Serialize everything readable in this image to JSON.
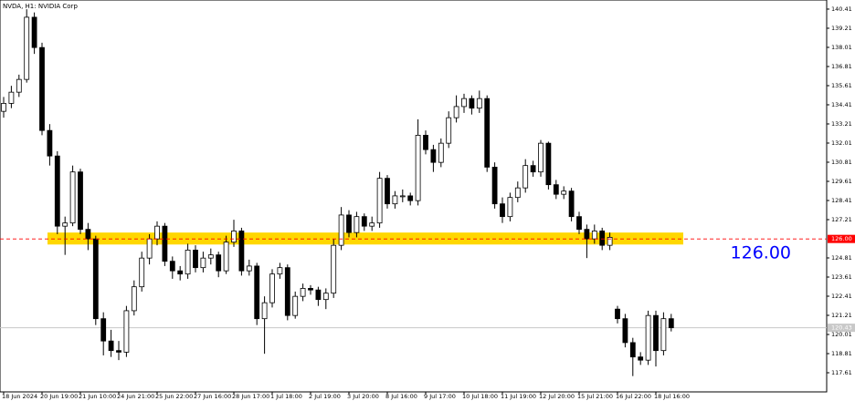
{
  "chart_data": {
    "type": "candlestick",
    "title": "NVDA, H1:  NVIDIA Corp",
    "categories": [
      "18 Jun 2024",
      null,
      null,
      null,
      null,
      "20 Jun 19:00",
      null,
      null,
      null,
      null,
      "21 Jun 10:00",
      null,
      null,
      null,
      null,
      "24 Jun 21:00",
      null,
      null,
      null,
      null,
      "25 Jun 22:00",
      null,
      null,
      null,
      null,
      "27 Jun 16:00",
      null,
      null,
      null,
      null,
      "28 Jun 17:00",
      null,
      null,
      null,
      null,
      "1 Jul 18:00",
      null,
      null,
      null,
      null,
      "2 Jul 19:00",
      null,
      null,
      null,
      null,
      "3 Jul 20:00",
      null,
      null,
      null,
      null,
      "8 Jul 16:00",
      null,
      null,
      null,
      null,
      "9 Jul 17:00",
      null,
      null,
      null,
      null,
      "10 Jul 18:00",
      null,
      null,
      null,
      null,
      "11 Jul 19:00",
      null,
      null,
      null,
      null,
      "12 Jul 20:00",
      null,
      null,
      null,
      null,
      "15 Jul 21:00",
      null,
      null,
      null,
      null,
      "16 Jul 22:00",
      null,
      null,
      null,
      null,
      "18 Jul 16:00",
      null,
      null
    ],
    "candles": [
      [
        134.0,
        134.9,
        133.6,
        134.5
      ],
      [
        134.5,
        135.6,
        134.2,
        135.2
      ],
      [
        135.2,
        136.3,
        134.9,
        136.0
      ],
      [
        136.0,
        140.4,
        135.8,
        139.9
      ],
      [
        139.9,
        140.2,
        137.6,
        138.0
      ],
      [
        138.0,
        138.3,
        132.5,
        132.8
      ],
      [
        132.8,
        133.2,
        130.6,
        131.2
      ],
      [
        131.2,
        131.5,
        126.3,
        126.8
      ],
      [
        126.8,
        127.4,
        125.0,
        127.0
      ],
      [
        127.0,
        130.6,
        126.8,
        130.2
      ],
      [
        130.2,
        130.4,
        126.3,
        126.6
      ],
      [
        126.6,
        127.0,
        125.3,
        126.0
      ],
      [
        126.0,
        126.2,
        120.6,
        121.0
      ],
      [
        121.0,
        121.4,
        118.7,
        119.6
      ],
      [
        119.6,
        120.3,
        118.6,
        119.0
      ],
      [
        119.0,
        119.6,
        118.4,
        118.9
      ],
      [
        118.9,
        121.8,
        118.6,
        121.5
      ],
      [
        121.5,
        123.4,
        121.2,
        123.0
      ],
      [
        123.0,
        125.2,
        122.7,
        124.8
      ],
      [
        124.8,
        126.3,
        124.4,
        126.0
      ],
      [
        126.0,
        127.1,
        125.6,
        126.8
      ],
      [
        126.8,
        127.0,
        124.3,
        124.6
      ],
      [
        124.6,
        124.9,
        123.5,
        124.0
      ],
      [
        124.0,
        124.3,
        123.4,
        123.8
      ],
      [
        123.8,
        125.7,
        123.5,
        125.3
      ],
      [
        125.3,
        125.6,
        123.9,
        124.2
      ],
      [
        124.2,
        125.2,
        123.9,
        124.8
      ],
      [
        124.8,
        125.4,
        124.4,
        125.0
      ],
      [
        125.0,
        125.2,
        123.6,
        124.0
      ],
      [
        124.0,
        126.2,
        123.8,
        125.8
      ],
      [
        125.8,
        127.2,
        125.5,
        126.5
      ],
      [
        126.5,
        126.7,
        123.7,
        124.0
      ],
      [
        124.0,
        124.7,
        123.7,
        124.3
      ],
      [
        124.3,
        124.5,
        120.6,
        121.0
      ],
      [
        121.0,
        122.4,
        118.8,
        122.0
      ],
      [
        122.0,
        124.1,
        121.7,
        123.8
      ],
      [
        123.8,
        124.5,
        123.5,
        124.2
      ],
      [
        124.2,
        124.4,
        120.9,
        121.2
      ],
      [
        121.2,
        122.7,
        121.0,
        122.4
      ],
      [
        122.4,
        123.2,
        122.1,
        122.9
      ],
      [
        122.9,
        123.1,
        122.5,
        122.8
      ],
      [
        122.8,
        123.0,
        121.8,
        122.2
      ],
      [
        122.2,
        122.9,
        121.6,
        122.6
      ],
      [
        122.6,
        126.0,
        122.3,
        125.6
      ],
      [
        125.6,
        128.0,
        125.3,
        127.5
      ],
      [
        127.5,
        127.8,
        126.1,
        126.4
      ],
      [
        126.4,
        127.7,
        126.1,
        127.4
      ],
      [
        127.4,
        127.6,
        126.5,
        126.8
      ],
      [
        126.8,
        127.4,
        126.5,
        127.0
      ],
      [
        127.0,
        130.2,
        126.7,
        129.8
      ],
      [
        129.8,
        130.0,
        127.9,
        128.2
      ],
      [
        128.2,
        129.0,
        127.9,
        128.7
      ],
      [
        128.7,
        129.1,
        128.3,
        128.7
      ],
      [
        128.7,
        128.9,
        128.1,
        128.4
      ],
      [
        128.4,
        133.5,
        128.1,
        132.5
      ],
      [
        132.5,
        132.8,
        131.3,
        131.6
      ],
      [
        131.6,
        131.9,
        130.2,
        130.8
      ],
      [
        130.8,
        132.3,
        130.5,
        132.0
      ],
      [
        132.0,
        134.0,
        131.7,
        133.6
      ],
      [
        133.6,
        135.0,
        133.3,
        134.3
      ],
      [
        134.3,
        135.1,
        133.9,
        134.8
      ],
      [
        134.8,
        135.0,
        133.8,
        134.2
      ],
      [
        134.2,
        135.3,
        133.9,
        134.8
      ],
      [
        134.8,
        135.0,
        130.2,
        130.5
      ],
      [
        130.5,
        130.8,
        127.9,
        128.2
      ],
      [
        128.2,
        128.6,
        127.0,
        127.4
      ],
      [
        127.4,
        128.9,
        127.1,
        128.6
      ],
      [
        128.6,
        129.6,
        128.3,
        129.2
      ],
      [
        129.2,
        131.0,
        128.9,
        130.6
      ],
      [
        130.6,
        130.9,
        129.9,
        130.2
      ],
      [
        130.2,
        132.2,
        129.9,
        132.0
      ],
      [
        132.0,
        132.1,
        129.1,
        129.4
      ],
      [
        129.4,
        129.7,
        128.5,
        128.8
      ],
      [
        128.8,
        129.3,
        128.5,
        129.0
      ],
      [
        129.0,
        129.2,
        127.1,
        127.4
      ],
      [
        127.4,
        127.7,
        126.3,
        126.6
      ],
      [
        126.6,
        126.9,
        124.8,
        126.0
      ],
      [
        126.0,
        126.9,
        125.7,
        126.5
      ],
      [
        126.5,
        126.7,
        125.3,
        125.6
      ],
      [
        125.6,
        126.4,
        125.3,
        126.1
      ],
      [
        121.6,
        121.8,
        120.7,
        121.0
      ],
      [
        121.0,
        121.3,
        119.2,
        119.5
      ],
      [
        119.5,
        119.8,
        117.4,
        118.6
      ],
      [
        118.6,
        118.9,
        118.1,
        118.4
      ],
      [
        118.4,
        121.5,
        118.1,
        121.2
      ],
      [
        121.2,
        121.5,
        118.0,
        119.0
      ],
      [
        119.0,
        121.4,
        118.7,
        121.0
      ],
      [
        121.0,
        121.3,
        120.2,
        120.43
      ]
    ],
    "up_color": "#ffffff",
    "down_color": "#000000",
    "ylim": [
      116.41,
      140.98
    ],
    "yticks": [
      140.41,
      139.21,
      138.01,
      136.81,
      135.61,
      134.41,
      133.21,
      132.01,
      130.81,
      129.61,
      128.41,
      127.21,
      124.81,
      123.61,
      122.41,
      121.21,
      120.01,
      118.81,
      117.61
    ],
    "zone": {
      "low": 125.65,
      "high": 126.4,
      "color": "#ffd700"
    },
    "level": {
      "value": 126.0,
      "label": "126.00",
      "color": "#ff0000",
      "text_color": "#0000ff"
    },
    "current_price": {
      "value": 120.43,
      "label": "120.43"
    }
  }
}
